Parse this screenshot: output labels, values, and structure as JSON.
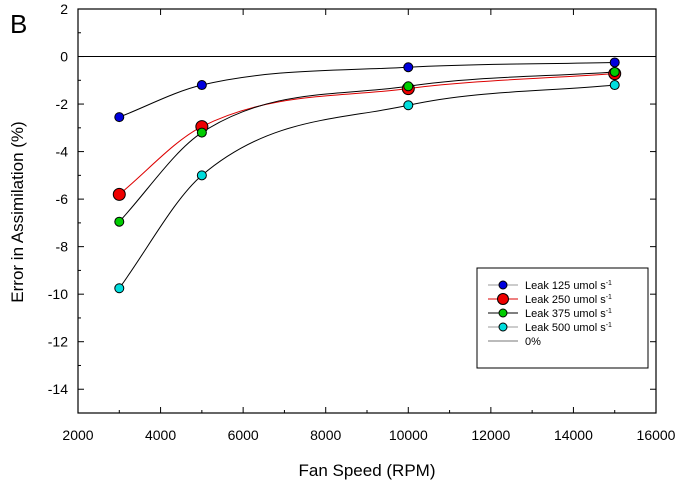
{
  "chart_data": {
    "type": "line",
    "panel_label": "B",
    "title": "",
    "xlabel": "Fan Speed (RPM)",
    "ylabel": "Error in Assimilation (%)",
    "xlim": [
      2000,
      16000
    ],
    "ylim": [
      -15,
      2
    ],
    "xticks": [
      2000,
      4000,
      6000,
      8000,
      10000,
      12000,
      14000,
      16000
    ],
    "xtick_labels": [
      "2000",
      "4000",
      "6000",
      "8000",
      "10000",
      "12000",
      "14000",
      "16000"
    ],
    "yticks": [
      2,
      0,
      -2,
      -4,
      -6,
      -8,
      -10,
      -12,
      -14
    ],
    "ytick_labels": [
      "2",
      "0",
      "-2",
      "-4",
      "-6",
      "-8",
      "-10",
      "-12",
      "-14"
    ],
    "grid": false,
    "legend_position": "bottom-right",
    "x": [
      3000,
      5000,
      10000,
      15000
    ],
    "series": [
      {
        "name": "Leak 125 umol s",
        "sup": "-1",
        "color": "#0000dd",
        "line_color": "#000000",
        "marker_size": "small",
        "values": [
          -2.55,
          -1.2,
          -0.45,
          -0.25
        ]
      },
      {
        "name": "Leak 250 umol s",
        "sup": "-1",
        "color": "#ee0000",
        "line_color": "#dd0000",
        "marker_size": "large",
        "values": [
          -5.8,
          -2.95,
          -1.35,
          -0.72
        ]
      },
      {
        "name": "Leak 375 umol s",
        "sup": "-1",
        "color": "#00cc00",
        "line_color": "#000000",
        "marker_size": "small",
        "values": [
          -6.95,
          -3.2,
          -1.25,
          -0.65
        ]
      },
      {
        "name": "Leak 500 umol s",
        "sup": "-1",
        "color": "#00dddd",
        "line_color": "#000000",
        "marker_size": "small",
        "values": [
          -9.75,
          -5.0,
          -2.05,
          -1.2
        ]
      }
    ],
    "reference_line": {
      "name": "0%",
      "y": 0,
      "color": "#000000"
    }
  }
}
